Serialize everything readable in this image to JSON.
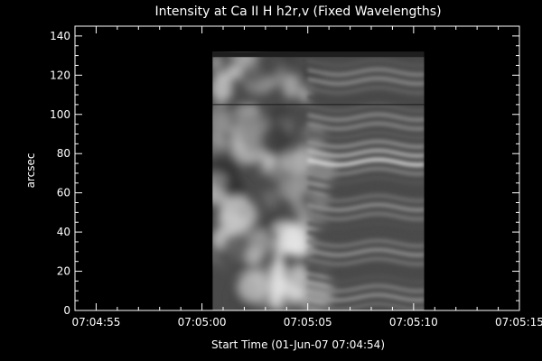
{
  "chart_data": {
    "type": "heatmap",
    "title": "Intensity at Ca II H h2r,v (Fixed Wavelengths)",
    "xlabel": "Start Time (01-Jun-07 07:04:54)",
    "ylabel": "arcsec",
    "x_ticks": [
      "07:04:55",
      "07:05:00",
      "07:05:05",
      "07:05:10",
      "07:05:15"
    ],
    "x_tick_seconds": [
      1,
      6,
      11,
      16,
      21
    ],
    "xlim_seconds": [
      0,
      21
    ],
    "y_ticks": [
      "0",
      "20",
      "40",
      "60",
      "80",
      "100",
      "120",
      "140"
    ],
    "y_tick_values": [
      0,
      20,
      40,
      60,
      80,
      100,
      120,
      140
    ],
    "ylim": [
      0,
      145
    ],
    "image_extent": {
      "x_seconds": [
        6.5,
        16.5
      ],
      "y_arcsec": [
        0,
        132
      ]
    },
    "reference_line_y": 105,
    "colormap": "grayscale",
    "background": "#000000",
    "foreground": "#ffffff"
  }
}
